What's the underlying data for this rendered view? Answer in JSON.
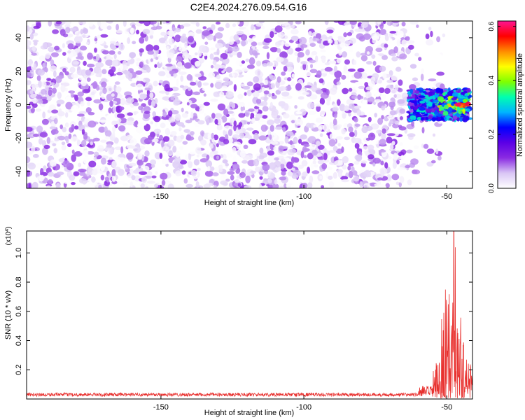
{
  "title": "C2E4.2024.276.09.54.G16",
  "chart_data": [
    {
      "type": "heatmap",
      "xlabel": "Height of straight line (km)",
      "ylabel": "Frequency (Hz)",
      "xlim": [
        -197,
        -41
      ],
      "ylim": [
        -50,
        50
      ],
      "xticks": [
        -150,
        -100,
        -50
      ],
      "yticks": [
        -40,
        -20,
        0,
        20,
        40
      ],
      "colorbar": {
        "label": "Normalized spectral amplitude",
        "range": [
          0.0,
          0.62
        ],
        "ticks": [
          0.0,
          0.2,
          0.4,
          0.6
        ],
        "colormap": [
          "#ffffff",
          "#d9c6f5",
          "#8a2be2",
          "#5b00e6",
          "#0000ff",
          "#00b4ff",
          "#00ffb0",
          "#7fff00",
          "#ffff00",
          "#ff8c00",
          "#ff0000",
          "#ff1493"
        ]
      },
      "background_noise": {
        "x_range": [
          -197,
          -59
        ],
        "freq_range": [
          -50,
          50
        ],
        "amplitude_range": [
          0.0,
          0.12
        ]
      },
      "signal": {
        "x_range": [
          -63,
          -42
        ],
        "freq_center": 0,
        "freq_halfwidth": 9,
        "peak_amplitude": 0.6,
        "peak_x": -46
      }
    },
    {
      "type": "line",
      "xlabel": "Height of straight line (km)",
      "ylabel": "SNR (10 * v/v)",
      "yscale_label": "(x10",
      "yscale_exp": "4",
      "xlim": [
        -197,
        -41
      ],
      "ylim": [
        0,
        1.15
      ],
      "xticks": [
        -150,
        -100,
        -50
      ],
      "yticks": [
        0.2,
        0.4,
        0.6,
        0.8,
        1.0
      ],
      "color": "#e8312f",
      "series": [
        {
          "segments": [
            {
              "x": [
                -197,
                -60
              ],
              "baseline": 0.03,
              "noise": 0.012
            },
            {
              "x": [
                -60,
                -55
              ],
              "baseline": 0.05,
              "noise": 0.04
            },
            {
              "x": [
                -55,
                -52
              ],
              "baseline": 0.1,
              "noise": 0.15
            },
            {
              "x": [
                -52,
                -48
              ],
              "baseline": 0.3,
              "noise": 0.45
            },
            {
              "x": [
                -48,
                -47
              ],
              "baseline": 0.6,
              "noise": 0.55
            },
            {
              "x": [
                -47,
                -44
              ],
              "baseline": 0.25,
              "noise": 0.35
            },
            {
              "x": [
                -44,
                -41
              ],
              "baseline": 0.12,
              "noise": 0.15
            }
          ],
          "peak": {
            "x": -47.5,
            "y": 1.15
          }
        }
      ]
    }
  ]
}
